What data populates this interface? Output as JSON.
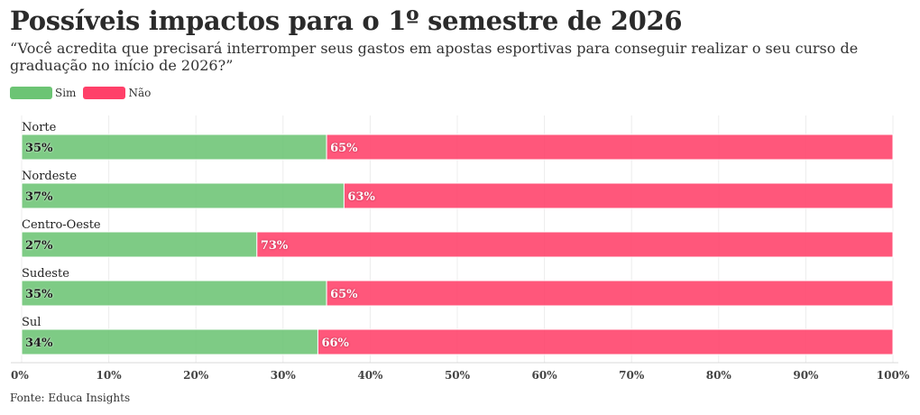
{
  "chart_data": {
    "type": "bar",
    "orientation": "horizontal-stacked",
    "title": "Possíveis impactos para o 1º semestre de 2026",
    "subtitle": "“Você acredita que precisará interromper seus gastos em apostas esportivas para conseguir realizar o seu curso de graduação no início de 2026?”",
    "categories": [
      "Norte",
      "Nordeste",
      "Centro-Oeste",
      "Sudeste",
      "Sul"
    ],
    "series": [
      {
        "name": "Sim",
        "color": "#6cc474",
        "values": [
          35,
          37,
          27,
          35,
          34
        ],
        "labels": [
          "35%",
          "37%",
          "27%",
          "35%",
          "34%"
        ]
      },
      {
        "name": "Não",
        "color": "#ff4069",
        "values": [
          65,
          63,
          73,
          65,
          66
        ],
        "labels": [
          "65%",
          "63%",
          "73%",
          "65%",
          "66%"
        ]
      }
    ],
    "xlim": [
      0,
      100
    ],
    "xticks": [
      "0%",
      "10%",
      "20%",
      "30%",
      "40%",
      "50%",
      "60%",
      "70%",
      "80%",
      "90%",
      "100%"
    ],
    "grid": true,
    "legend": "top-left",
    "source": "Fonte: Educa Insights"
  }
}
